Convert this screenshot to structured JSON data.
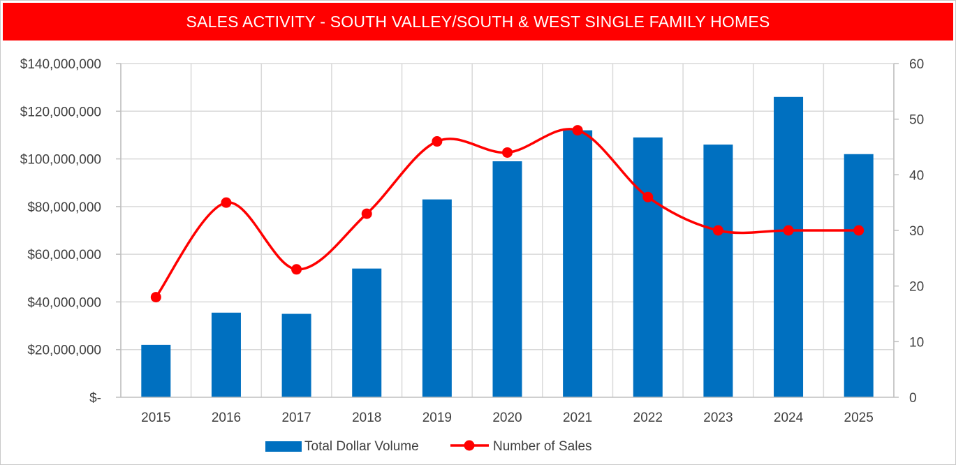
{
  "header": {
    "title": "SALES ACTIVITY - SOUTH VALLEY/SOUTH & WEST SINGLE FAMILY HOMES"
  },
  "colors": {
    "title_bar": "#ff0000",
    "bars": "#0070c0",
    "line": "#ff0000",
    "grid": "#d9d9d9"
  },
  "chart_data": {
    "type": "bar",
    "title": "SALES ACTIVITY - SOUTH VALLEY/SOUTH & WEST SINGLE FAMILY HOMES",
    "categories": [
      "2015",
      "2016",
      "2017",
      "2018",
      "2019",
      "2020",
      "2021",
      "2022",
      "2023",
      "2024",
      "2025"
    ],
    "series": [
      {
        "name": "Total Dollar Volume",
        "type": "bar",
        "axis": "left",
        "values": [
          22000000,
          35500000,
          35000000,
          54000000,
          83000000,
          99000000,
          112000000,
          109000000,
          106000000,
          126000000,
          102000000
        ]
      },
      {
        "name": "Number of Sales",
        "type": "line",
        "axis": "right",
        "smooth": true,
        "values": [
          18,
          35,
          23,
          33,
          46,
          44,
          48,
          36,
          30,
          30,
          30
        ]
      }
    ],
    "y_left": {
      "min": 0,
      "max": 140000000,
      "ticks": [
        "$-",
        "$20,000,000",
        "$40,000,000",
        "$60,000,000",
        "$80,000,000",
        "$100,000,000",
        "$120,000,000",
        "$140,000,000"
      ]
    },
    "y_right": {
      "min": 0,
      "max": 60,
      "ticks": [
        "0",
        "10",
        "20",
        "30",
        "40",
        "50",
        "60"
      ]
    },
    "grid": true,
    "legend_position": "bottom"
  }
}
